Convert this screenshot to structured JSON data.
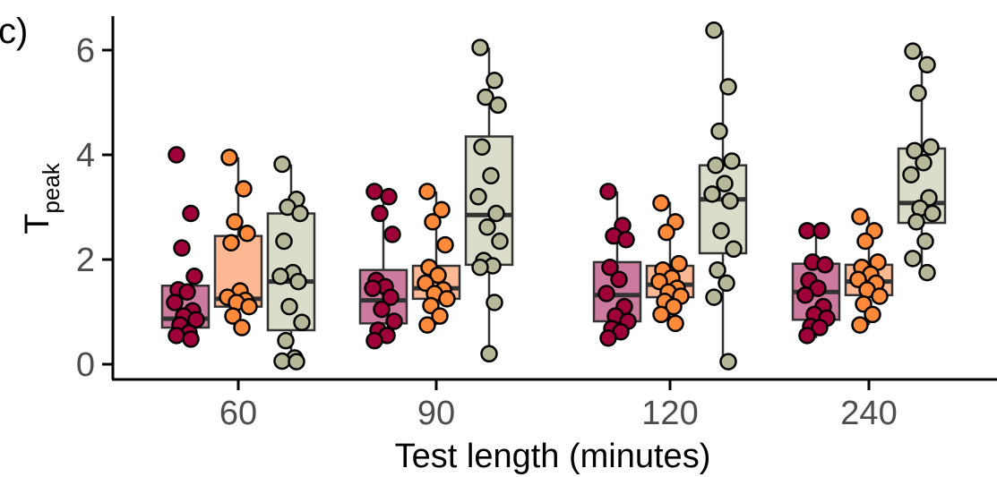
{
  "panel_label": "c)",
  "chart_data": {
    "type": "boxplot",
    "xlabel": "Test length (minutes)",
    "ylabel_main": "T",
    "ylabel_sub": "peak",
    "ylim": [
      -0.3,
      6.6
    ],
    "yticks": [
      0,
      2,
      4,
      6
    ],
    "categories": [
      "60",
      "90",
      "120",
      "240"
    ],
    "grid": false,
    "legend": "none",
    "series": [
      {
        "fill": "#cc7a9e",
        "point_color": "#a0003a",
        "boxes": [
          {
            "q1": 0.7,
            "median": 0.87,
            "q3": 1.5,
            "min": 0.5,
            "max": 1.5
          },
          {
            "q1": 0.78,
            "median": 1.22,
            "q3": 1.8,
            "min": 0.45,
            "max": 3.3
          },
          {
            "q1": 0.82,
            "median": 1.32,
            "q3": 1.95,
            "min": 0.5,
            "max": 3.3
          },
          {
            "q1": 0.85,
            "median": 1.38,
            "q3": 1.92,
            "min": 0.5,
            "max": 2.55
          }
        ],
        "points": [
          [
            4.0,
            2.88,
            2.22,
            1.68,
            1.42,
            1.38,
            1.18,
            1.02,
            0.92,
            0.85,
            0.75,
            0.6,
            0.55,
            0.48
          ],
          [
            3.3,
            3.2,
            2.88,
            2.48,
            1.6,
            1.48,
            1.45,
            1.28,
            1.05,
            0.82,
            0.65,
            0.55,
            0.45
          ],
          [
            3.3,
            2.65,
            2.45,
            2.38,
            1.85,
            1.62,
            1.35,
            1.1,
            0.92,
            0.82,
            0.68,
            0.62,
            0.5
          ],
          [
            2.55,
            2.55,
            1.95,
            1.9,
            1.6,
            1.45,
            1.32,
            1.1,
            0.95,
            0.88,
            0.72,
            0.7,
            0.55
          ]
        ]
      },
      {
        "fill": "#ffb894",
        "point_color": "#ff8a3a",
        "boxes": [
          {
            "q1": 1.1,
            "median": 1.25,
            "q3": 2.45,
            "min": 0.7,
            "max": 3.95
          },
          {
            "q1": 1.25,
            "median": 1.45,
            "q3": 1.88,
            "min": 0.75,
            "max": 3.3
          },
          {
            "q1": 1.28,
            "median": 1.52,
            "q3": 1.88,
            "min": 0.75,
            "max": 3.1
          },
          {
            "q1": 1.32,
            "median": 1.58,
            "q3": 1.9,
            "min": 0.75,
            "max": 2.82
          }
        ],
        "points": [
          [
            3.95,
            3.35,
            2.72,
            2.5,
            2.32,
            1.4,
            1.28,
            1.22,
            1.18,
            1.1,
            0.92,
            0.7
          ],
          [
            3.3,
            2.95,
            2.72,
            2.28,
            1.85,
            1.7,
            1.55,
            1.42,
            1.35,
            1.25,
            1.12,
            0.92,
            0.75
          ],
          [
            3.08,
            2.72,
            2.52,
            1.92,
            1.8,
            1.65,
            1.58,
            1.45,
            1.38,
            1.3,
            1.2,
            1.1,
            0.95,
            0.78
          ],
          [
            2.82,
            2.55,
            2.35,
            1.95,
            1.85,
            1.72,
            1.62,
            1.55,
            1.42,
            1.3,
            1.15,
            0.95,
            0.75
          ]
        ]
      },
      {
        "fill": "#dcdccb",
        "point_color": "#b7b89a",
        "boxes": [
          {
            "q1": 0.65,
            "median": 1.58,
            "q3": 2.88,
            "min": 0.05,
            "max": 3.82
          },
          {
            "q1": 1.9,
            "median": 2.85,
            "q3": 4.35,
            "min": 0.2,
            "max": 6.05
          },
          {
            "q1": 2.12,
            "median": 3.15,
            "q3": 3.8,
            "min": 0.05,
            "max": 6.38
          },
          {
            "q1": 2.7,
            "median": 3.08,
            "q3": 4.12,
            "min": 1.75,
            "max": 5.98
          }
        ],
        "points": [
          [
            3.82,
            3.15,
            3.0,
            2.88,
            2.35,
            1.75,
            1.68,
            1.58,
            1.1,
            0.8,
            0.45,
            0.12,
            0.06,
            0.05
          ],
          [
            6.05,
            5.42,
            5.1,
            4.95,
            4.15,
            3.6,
            3.2,
            2.88,
            2.62,
            2.35,
            1.98,
            1.88,
            1.85,
            1.18,
            0.2
          ],
          [
            6.38,
            5.3,
            4.45,
            3.88,
            3.8,
            3.45,
            3.25,
            3.12,
            2.55,
            2.2,
            1.8,
            1.55,
            1.28,
            0.05
          ],
          [
            5.98,
            5.72,
            5.18,
            4.15,
            4.08,
            3.85,
            3.62,
            3.18,
            2.98,
            2.88,
            2.72,
            2.35,
            2.02,
            1.75
          ]
        ]
      }
    ]
  }
}
